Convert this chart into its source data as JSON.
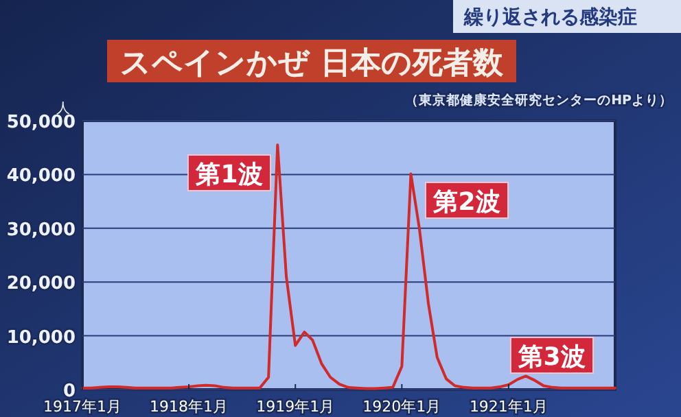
{
  "chart_data": {
    "type": "line",
    "title": "スペインかぜ 日本の死者数",
    "subtitle": "繰り返される感染症",
    "ylabel": "人",
    "annotations": [
      "第1波",
      "第2波",
      "第3波",
      "（東京都健康安全研究センターのHPより）"
    ],
    "x": [
      "1917-01",
      "1917-02",
      "1917-03",
      "1917-04",
      "1917-05",
      "1917-06",
      "1917-07",
      "1917-08",
      "1917-09",
      "1917-10",
      "1917-11",
      "1917-12",
      "1918-01",
      "1918-02",
      "1918-03",
      "1918-04",
      "1918-05",
      "1918-06",
      "1918-07",
      "1918-08",
      "1918-09",
      "1918-10",
      "1918-11",
      "1918-12",
      "1919-01",
      "1919-02",
      "1919-03",
      "1919-04",
      "1919-05",
      "1919-06",
      "1919-07",
      "1919-08",
      "1919-09",
      "1919-10",
      "1919-11",
      "1919-12",
      "1920-01",
      "1920-02",
      "1920-03",
      "1920-04",
      "1920-05",
      "1920-06",
      "1920-07",
      "1920-08",
      "1920-09",
      "1920-10",
      "1920-11",
      "1920-12",
      "1921-01",
      "1921-02",
      "1921-03",
      "1921-04",
      "1921-05",
      "1921-06",
      "1921-07",
      "1921-08",
      "1921-09",
      "1921-10",
      "1921-11",
      "1921-12",
      "1922-01"
    ],
    "series": [
      {
        "color": "#d02a2a",
        "values": [
          300,
          300,
          400,
          500,
          500,
          400,
          300,
          300,
          300,
          300,
          300,
          400,
          500,
          700,
          800,
          700,
          400,
          300,
          300,
          300,
          300,
          2300,
          45500,
          21000,
          8200,
          10700,
          9200,
          4800,
          2300,
          1000,
          400,
          300,
          200,
          200,
          300,
          400,
          4300,
          40100,
          30000,
          16000,
          6000,
          2000,
          700,
          400,
          300,
          300,
          300,
          500,
          900,
          1900,
          2500,
          1700,
          700,
          400,
          300,
          300,
          300,
          300,
          300,
          300,
          300
        ]
      }
    ],
    "xlim": [
      "1917-01",
      "1922-01"
    ],
    "xticks": [
      {
        "value": "1917-01",
        "label": "1917年1月"
      },
      {
        "value": "1918-01",
        "label": "1918年1月"
      },
      {
        "value": "1919-01",
        "label": "1919年1月"
      },
      {
        "value": "1920-01",
        "label": "1920年1月"
      },
      {
        "value": "1921-01",
        "label": "1921年1月"
      }
    ],
    "ylim": [
      0,
      50000
    ],
    "yticks": [
      {
        "value": 0,
        "label": "0"
      },
      {
        "value": 10000,
        "label": "10,000"
      },
      {
        "value": 20000,
        "label": "20,000"
      },
      {
        "value": 30000,
        "label": "30,000"
      },
      {
        "value": 40000,
        "label": "40,000"
      },
      {
        "value": 50000,
        "label": "50,000"
      }
    ],
    "grid": "y",
    "marker": "none",
    "line_style": "solid"
  }
}
